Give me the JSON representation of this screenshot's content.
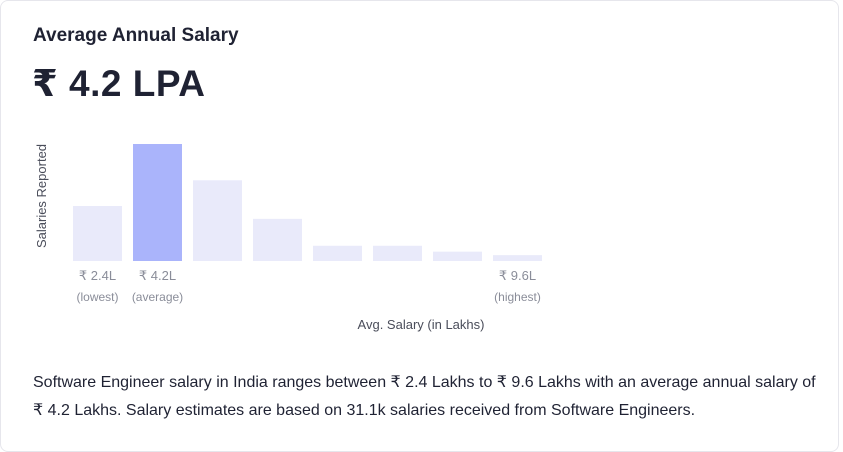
{
  "card": {
    "title": "Average Annual Salary",
    "value": "₹ 4.2 LPA",
    "description": "Software Engineer salary in India ranges between ₹ 2.4 Lakhs to ₹ 9.6 Lakhs with an average annual salary of ₹ 4.2 Lakhs. Salary estimates are based on 31.1k salaries received from Software Engineers."
  },
  "colors": {
    "bar": "#e9eafa",
    "highlight": "#aab4fb",
    "text": "#1f2233",
    "muted": "#8a8d99"
  },
  "chart_data": {
    "type": "bar",
    "xlabel": "Avg. Salary (in Lakhs)",
    "ylabel": "Salaries Reported",
    "values": [
      0.47,
      1.0,
      0.69,
      0.36,
      0.13,
      0.13,
      0.08,
      0.05
    ],
    "highlight_index": 1,
    "grid": false,
    "tick_labels": [
      {
        "index": 0,
        "value": "₹ 2.4L",
        "note": "(lowest)"
      },
      {
        "index": 1,
        "value": "₹ 4.2L",
        "note": "(average)"
      },
      {
        "index": 7,
        "value": "₹ 9.6L",
        "note": "(highest)"
      }
    ]
  }
}
